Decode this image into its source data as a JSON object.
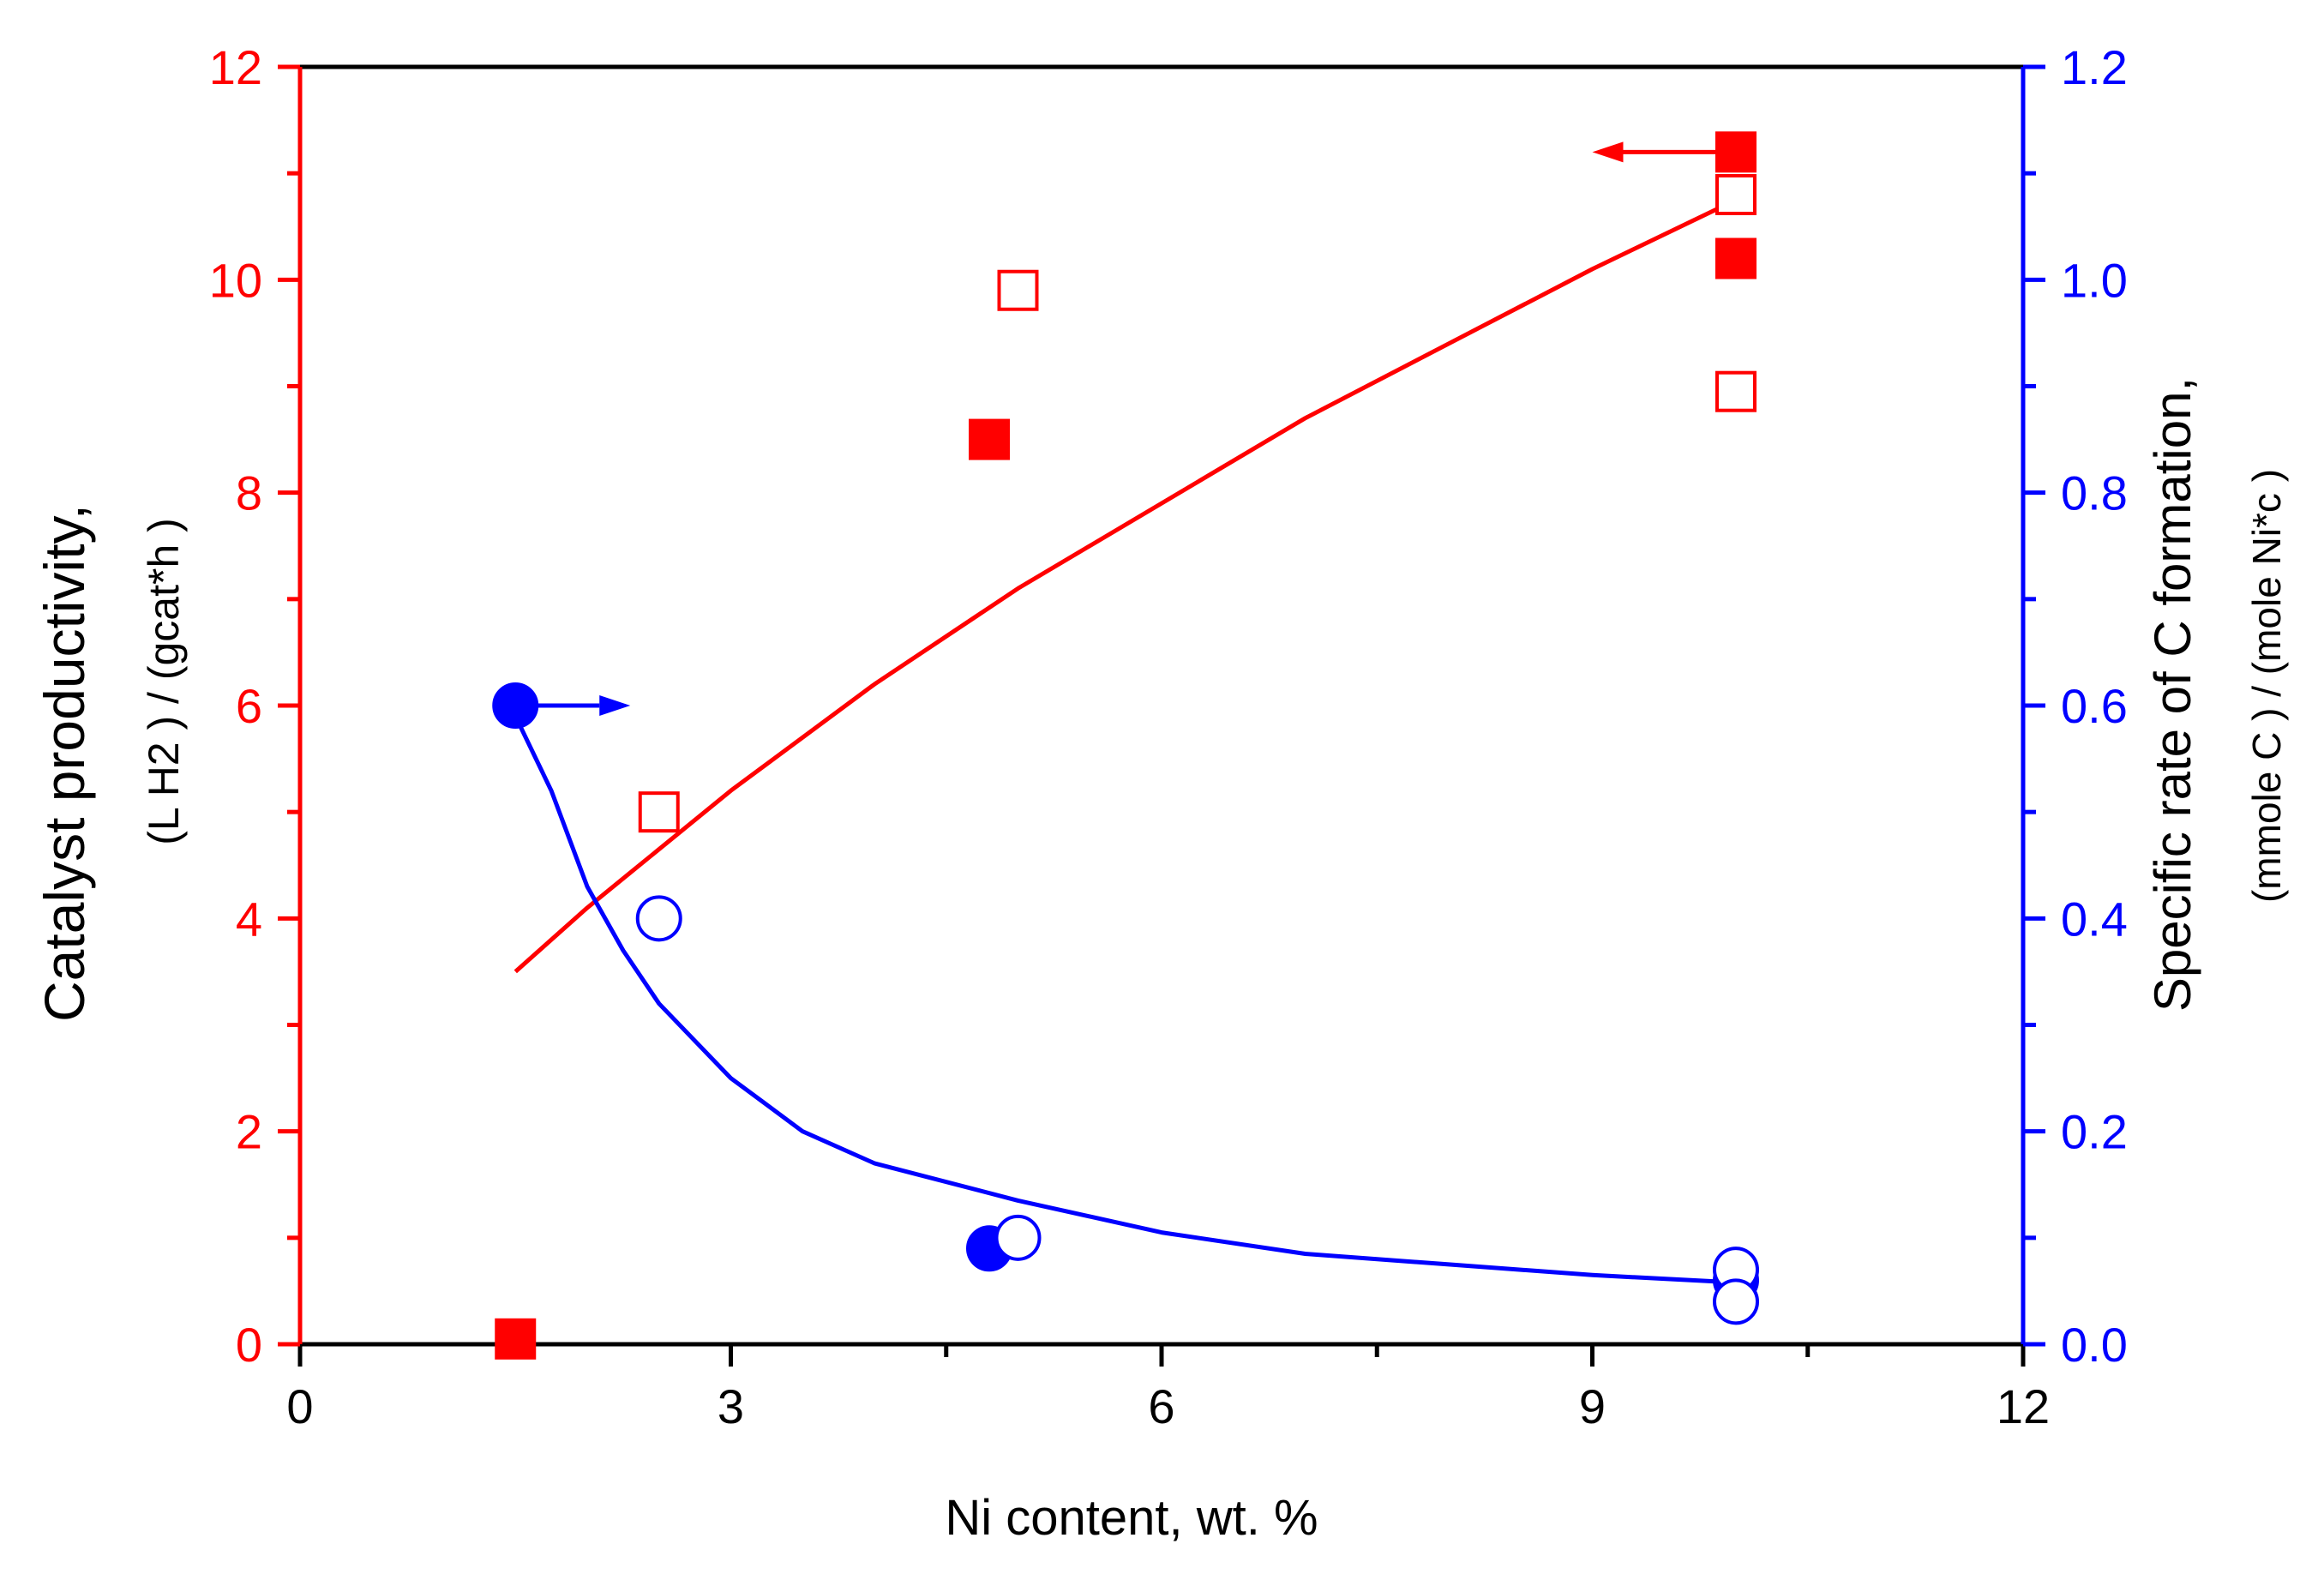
{
  "chart_data": {
    "type": "scatter",
    "x_axis": {
      "label": "Ni content, wt. %",
      "range": [
        0,
        12
      ],
      "ticks": [
        "0",
        "3",
        "6",
        "9",
        "12"
      ],
      "tick_values": [
        0,
        3,
        6,
        9,
        12
      ],
      "minor_ticks": [
        1.5,
        4.5,
        7.5,
        10.5
      ]
    },
    "y_left": {
      "label_main": "Catalyst productivity,",
      "label_units": "(L H2 ) / (gcat*h )",
      "range": [
        0,
        12
      ],
      "ticks": [
        "0",
        "2",
        "4",
        "6",
        "8",
        "10",
        "12"
      ],
      "tick_values": [
        0,
        2,
        4,
        6,
        8,
        10,
        12
      ],
      "minor_ticks": [
        1,
        3,
        5,
        7,
        9,
        11
      ],
      "color": "#ff0000"
    },
    "y_right": {
      "label_main": "Specific rate of C formation,",
      "label_units": "(mmole C ) / (mole Ni*c )",
      "range": [
        0,
        1.2
      ],
      "ticks": [
        "0.0",
        "0.2",
        "0.4",
        "0.6",
        "0.8",
        "1.0",
        "1.2"
      ],
      "tick_values": [
        0,
        0.2,
        0.4,
        0.6,
        0.8,
        1.0,
        1.2
      ],
      "minor_ticks": [
        0.1,
        0.3,
        0.5,
        0.7,
        0.9,
        1.1
      ],
      "color": "#0000ff"
    },
    "series": [
      {
        "axis": "left",
        "marker": "square",
        "filled": true,
        "color": "#ff0000",
        "points": [
          [
            1.5,
            0.05
          ],
          [
            4.8,
            8.5
          ],
          [
            10.0,
            11.2
          ],
          [
            10.0,
            10.2
          ]
        ]
      },
      {
        "axis": "left",
        "marker": "square",
        "filled": false,
        "color": "#ff0000",
        "points": [
          [
            2.5,
            5.0
          ],
          [
            5.0,
            9.9
          ],
          [
            10.0,
            10.8
          ],
          [
            10.0,
            8.95
          ]
        ]
      },
      {
        "axis": "right",
        "marker": "circle",
        "filled": true,
        "color": "#0000ff",
        "points": [
          [
            1.5,
            0.6
          ],
          [
            4.8,
            0.09
          ],
          [
            10.0,
            0.06
          ]
        ]
      },
      {
        "axis": "right",
        "marker": "circle",
        "filled": false,
        "color": "#0000ff",
        "points": [
          [
            2.5,
            0.4
          ],
          [
            5.0,
            0.1
          ],
          [
            10.0,
            0.07
          ],
          [
            10.0,
            0.04
          ]
        ]
      }
    ],
    "fits": [
      {
        "axis": "left",
        "color": "#ff0000",
        "points": [
          [
            1.5,
            3.5
          ],
          [
            2.0,
            4.1
          ],
          [
            3.0,
            5.2
          ],
          [
            4.0,
            6.2
          ],
          [
            5.0,
            7.1
          ],
          [
            6.0,
            7.9
          ],
          [
            7.0,
            8.7
          ],
          [
            8.0,
            9.4
          ],
          [
            9.0,
            10.1
          ],
          [
            10.0,
            10.75
          ]
        ]
      },
      {
        "axis": "right",
        "color": "#0000ff",
        "points": [
          [
            1.5,
            0.59
          ],
          [
            1.75,
            0.52
          ],
          [
            2.0,
            0.43
          ],
          [
            2.25,
            0.37
          ],
          [
            2.5,
            0.32
          ],
          [
            3.0,
            0.25
          ],
          [
            3.5,
            0.2
          ],
          [
            4.0,
            0.17
          ],
          [
            5.0,
            0.135
          ],
          [
            6.0,
            0.105
          ],
          [
            7.0,
            0.085
          ],
          [
            8.0,
            0.075
          ],
          [
            9.0,
            0.065
          ],
          [
            10.0,
            0.058
          ]
        ]
      }
    ],
    "axis_arrows": [
      {
        "axis": "left",
        "from": [
          10.0,
          11.2
        ],
        "to": [
          9.0,
          11.2
        ],
        "color": "#ff0000"
      },
      {
        "axis": "right",
        "from": [
          1.5,
          0.6
        ],
        "to": [
          2.3,
          0.6
        ],
        "color": "#0000ff"
      }
    ]
  }
}
